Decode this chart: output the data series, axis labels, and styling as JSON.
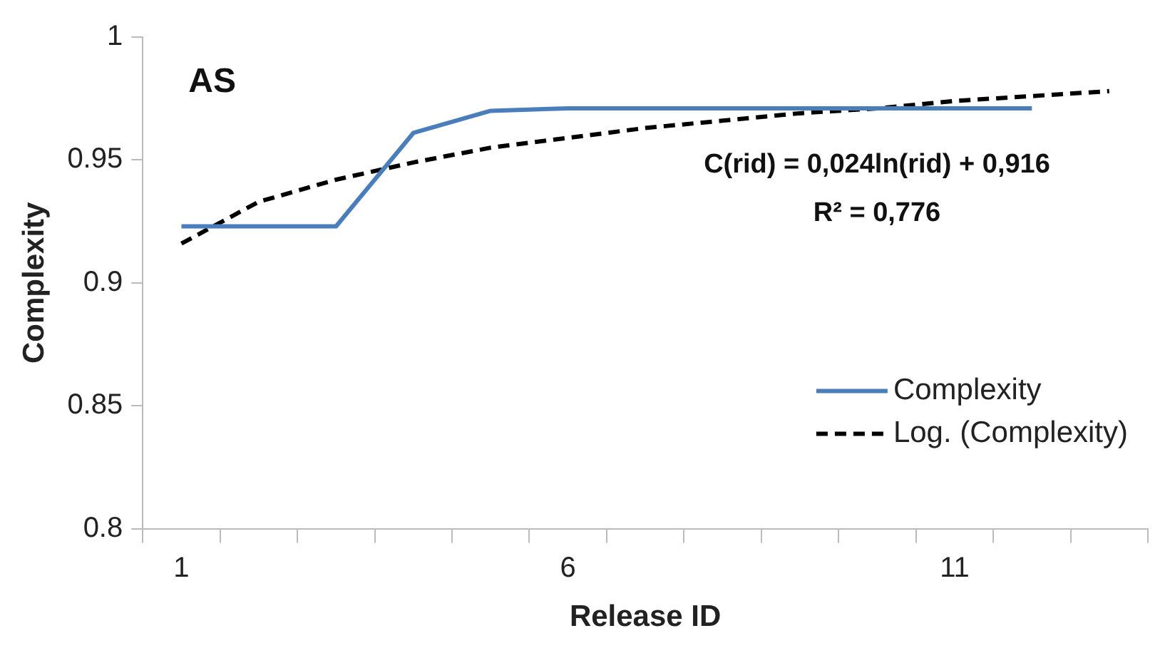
{
  "chart_data": {
    "type": "line",
    "xlabel": "Release ID",
    "ylabel": "Complexity",
    "categories": [
      "1",
      null,
      null,
      null,
      null,
      "6",
      null,
      null,
      null,
      null,
      "11",
      null,
      null
    ],
    "series": [
      {
        "name": "Complexity",
        "color": "#4a7ebb",
        "line_style": "solid",
        "values": [
          0.923,
          0.923,
          0.923,
          0.961,
          0.97,
          0.971,
          0.971,
          0.971,
          0.971,
          0.971,
          0.971,
          0.971,
          null
        ]
      },
      {
        "name": "Log. (Complexity)",
        "color": "#000000",
        "line_style": "dashed",
        "values": [
          0.916,
          0.933,
          0.942,
          0.949,
          0.955,
          0.959,
          0.963,
          0.966,
          0.969,
          0.971,
          0.974,
          0.976,
          0.978
        ]
      }
    ],
    "ylim": [
      0.8,
      1
    ],
    "yticks": [
      0.8,
      {
        "value": 0.85,
        "label": "0.85"
      },
      0.9,
      0.95,
      1
    ],
    "grid": false,
    "legend": "right",
    "marker": "none",
    "annotations": [
      "AS",
      "C(rid) = 0,024ln(rid) + 0,916",
      "R² = 0,776"
    ]
  }
}
